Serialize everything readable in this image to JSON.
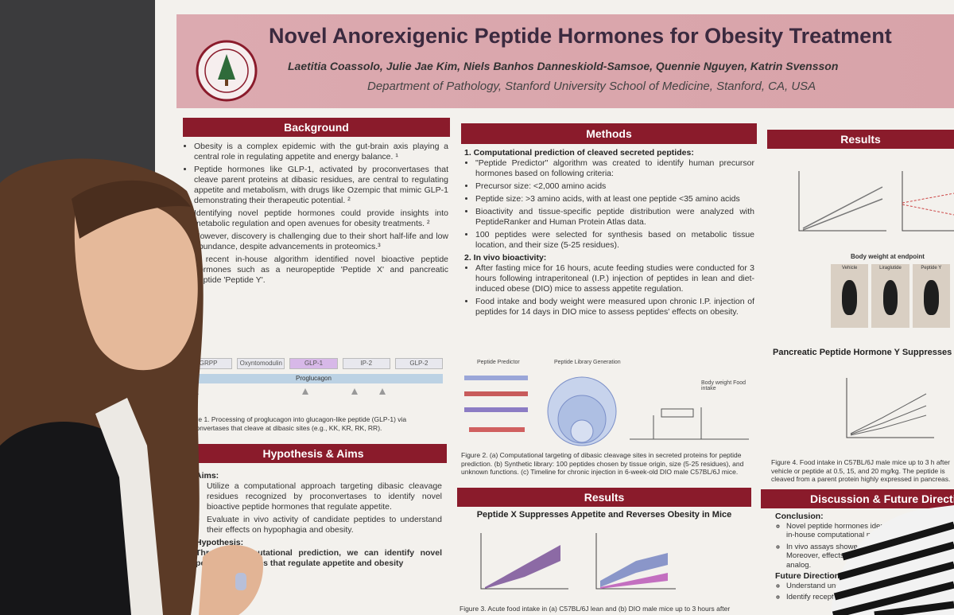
{
  "poster": {
    "title": "Novel Anorexigenic Peptide Hormones for Obesity Treatment",
    "authors": "Laetitia Coassolo, Julie Jae Kim, Niels Banhos Danneskiold-Samsoe, Quennie Nguyen, Katrin Svensson",
    "affiliation": "Department of Pathology, Stanford University School of Medicine, Stanford, CA, USA",
    "background": {
      "heading": "Background",
      "bullets": [
        "Obesity is a complex epidemic with the gut-brain axis playing a central role in regulating appetite and energy balance. ¹",
        "Peptide hormones like GLP-1, activated by proconvertases that cleave parent proteins at dibasic residues, are central to regulating appetite and metabolism, with drugs like Ozempic that mimic GLP-1 demonstrating their therapeutic potential. ²",
        "Identifying novel peptide hormones could provide insights into metabolic regulation and open avenues for obesity treatments. ²",
        "However, discovery is challenging due to their short half-life and low abundance, despite advancements in proteomics.³",
        "A recent in-house algorithm identified novel bioactive peptide hormones such as a neuropeptide 'Peptide X' and pancreatic peptide 'Peptide Y'."
      ],
      "figure_segments": [
        "GRPP",
        "Oxyntomodulin",
        "GLP-1",
        "IP-2",
        "GLP-2"
      ],
      "figure_precursor": "Proglucagon",
      "caption": "Figure 1. Processing of proglucagon into glucagon-like peptide (GLP-1) via proconvertases that cleave at dibasic sites (e.g., KK, KR, RK, RR)."
    },
    "hypothesis": {
      "heading": "Hypothesis & Aims",
      "aims_label": "Aims:",
      "aims": [
        "Utilize a computational approach targeting dibasic cleavage residues recognized by proconvertases to identify novel bioactive peptide hormones that regulate appetite.",
        "Evaluate in vivo activity of candidate peptides to understand their effects on hypophagia and obesity."
      ],
      "hypothesis_label": "Hypothesis:",
      "hypothesis_text": "Through computational prediction, we can identify novel peptide hormones that regulate appetite and obesity"
    },
    "methods": {
      "heading": "Methods",
      "sub1": "1. Computational prediction of cleaved secreted peptides:",
      "items1": [
        "\"Peptide Predictor\" algorithm was created to identify human precursor hormones based on following criteria:",
        "Precursor size: <2,000 amino acids",
        "Peptide size: >3 amino acids, with at least one peptide <35 amino acids",
        "Bioactivity and tissue-specific peptide distribution were analyzed with PeptideRanker and Human Protein Atlas data.",
        "100 peptides were selected for synthesis based on metabolic tissue location, and their size (5-25 residues)."
      ],
      "sub2": "2. In vivo bioactivity:",
      "items2": [
        "After fasting mice for 16 hours, acute feeding studies were conducted for 3 hours following intraperitoneal (I.P.) injection of peptides in lean and diet-induced obese (DIO) mice to assess appetite regulation.",
        "Food intake and body weight were measured upon chronic I.P. injection of peptides for 14 days in DIO mice to assess peptides' effects on obesity."
      ],
      "panel_titles": [
        "Peptide Predictor",
        "Peptide Library Generation",
        "Body weight Food intake"
      ],
      "caption": "Figure 2. (a) Computational targeting of dibasic cleavage sites in secreted proteins for peptide prediction. (b) Synthetic library: 100 peptides chosen by tissue origin, size (5-25 residues), and unknown functions. (c) Timeline for chronic injection in 6-week-old DIO male C57BL/6J mice."
    },
    "results_x": {
      "heading": "Results",
      "subtitle": "Peptide X Suppresses Appetite and Reverses Obesity in Mice",
      "caption": "Figure 3. Acute food intake in (a) C57BL/6J lean and (b) DIO male mice up to 3 hours after"
    },
    "results_y": {
      "heading": "Results",
      "panel_title": "Body weight at endpoint",
      "mouse_labels": [
        "Vehicle",
        "Liraglutide",
        "Peptide Y"
      ],
      "subtitle": "Pancreatic Peptide Hormone Y Suppresses",
      "caption": "Figure 4. Food intake in C57BL/6J male mice up to 3 h after vehicle or peptide at 0.5, 15, and 20 mg/kg. The peptide is cleaved from a parent protein highly expressed in pancreas."
    },
    "discussion": {
      "heading": "Discussion & Future Directions",
      "conclusion_label": "Conclusion:",
      "conclusions": [
        "Novel peptide hormones identified through in-house computational prediction",
        "In vivo assays showed reduced food intake. Moreover, effects on body weight of the analog."
      ],
      "future_label": "Future Directions:",
      "future": [
        "Understand underlying mechanisms",
        "Identify receptors"
      ]
    }
  }
}
